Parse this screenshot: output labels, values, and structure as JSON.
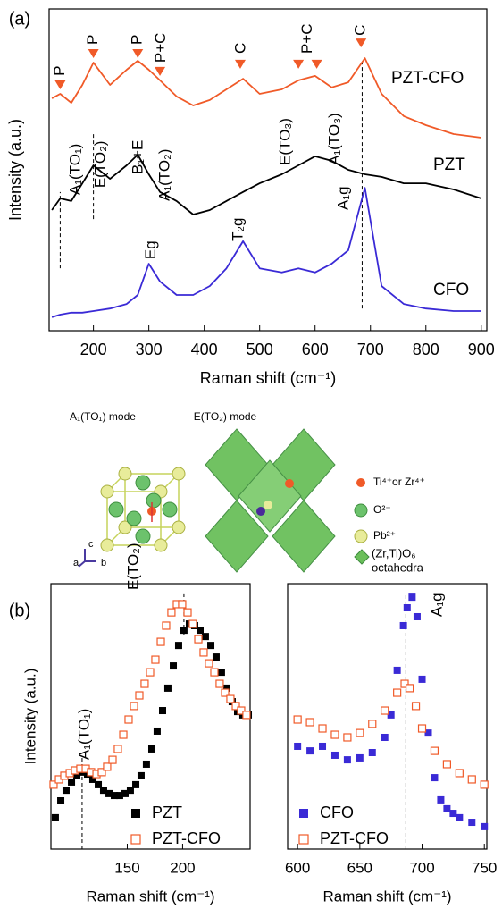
{
  "chart_data": [
    {
      "type": "line",
      "label": "(a)",
      "x_label": "Raman shift (cm⁻¹)",
      "y_label": "Intensity (a.u.)",
      "xlim": [
        120,
        910
      ],
      "xticks": [
        200,
        300,
        400,
        500,
        600,
        700,
        800,
        900
      ],
      "ylim": [
        0,
        100
      ],
      "x": [
        125,
        140,
        160,
        180,
        200,
        230,
        260,
        280,
        300,
        320,
        350,
        380,
        410,
        440,
        470,
        500,
        540,
        570,
        600,
        630,
        660,
        690,
        720,
        760,
        800,
        850,
        900
      ],
      "series": [
        {
          "name": "PZT-CFO",
          "color": "#f05a28",
          "values": [
            72.2,
            73.6,
            70.8,
            76.4,
            83.3,
            76.4,
            81.1,
            83.9,
            81.1,
            77.8,
            72.8,
            70,
            71.7,
            75,
            78.3,
            73.6,
            75,
            77.8,
            79.2,
            75.6,
            77.2,
            84.7,
            73.6,
            66.7,
            63.9,
            61.1,
            60
          ]
        },
        {
          "name": "PZT",
          "color": "#000000",
          "values": [
            37.5,
            41.1,
            40.3,
            45.8,
            51.4,
            47.2,
            51.4,
            54.7,
            48.6,
            43.1,
            40.3,
            36.1,
            37.5,
            40.3,
            43.1,
            45.8,
            48.6,
            51.4,
            54.2,
            52.8,
            50,
            48.6,
            47.8,
            45.8,
            45.8,
            43.9,
            41.1
          ]
        },
        {
          "name": "CFO",
          "color": "#3a2ad6",
          "values": [
            4.2,
            5,
            5.6,
            5.6,
            6.1,
            6.9,
            8.3,
            11.1,
            20.8,
            15.3,
            11.1,
            11.1,
            13.9,
            19.4,
            27.8,
            19.4,
            18.1,
            19.4,
            18.1,
            20.8,
            25,
            44.4,
            13.9,
            8.3,
            6.9,
            6.1,
            6.1
          ]
        }
      ],
      "annotations": [
        {
          "text": "A₁(TO₁)",
          "x": 168.4,
          "y": 42.2
        },
        {
          "text": "E(TO₂)",
          "x": 213.5,
          "y": 44.4
        },
        {
          "text": "B₁+E",
          "x": 281,
          "y": 48.6
        },
        {
          "text": "A₁(TO₂)",
          "x": 329.6,
          "y": 40.3
        },
        {
          "text": "E(TO₃)",
          "x": 547,
          "y": 51.4
        },
        {
          "text": "A₁(TO₃)",
          "x": 636,
          "y": 51.4
        },
        {
          "text": "A₁g",
          "x": 652,
          "y": 37.5
        },
        {
          "text": "Eg",
          "x": 305,
          "y": 22.2
        },
        {
          "text": "T₂g",
          "x": 462,
          "y": 27.8
        },
        {
          "text": "P",
          "x": 140,
          "y": 79.2
        },
        {
          "text": "P",
          "x": 200,
          "y": 88.9
        },
        {
          "text": "P",
          "x": 280,
          "y": 88.9
        },
        {
          "text": "P+C",
          "x": 322,
          "y": 83.3
        },
        {
          "text": "C",
          "x": 467,
          "y": 86.1
        },
        {
          "text": "P+C",
          "x": 587,
          "y": 86.1
        },
        {
          "text": "C",
          "x": 683,
          "y": 91.7
        }
      ],
      "peak_markers": {
        "color": "#f05a28",
        "points": [
          {
            "x": 140,
            "y": 76.4
          },
          {
            "x": 200,
            "y": 86.1
          },
          {
            "x": 280,
            "y": 86.1
          },
          {
            "x": 320,
            "y": 80.6
          },
          {
            "x": 465,
            "y": 82.8
          },
          {
            "x": 570,
            "y": 82.8
          },
          {
            "x": 603,
            "y": 82.8
          },
          {
            "x": 683,
            "y": 89.4
          }
        ]
      },
      "ref_lines": [
        {
          "x": 140,
          "from": 19.4,
          "to": 43.1
        },
        {
          "x": 200,
          "from": 34.7,
          "to": 61.1
        },
        {
          "x": 685,
          "from": 6.9,
          "to": 83.3
        }
      ]
    },
    {
      "type": "scatter",
      "label": "(b)",
      "x_label": "Raman shift (cm⁻¹)",
      "y_label": "Intensity (a.u.)",
      "xlim": [
        81,
        261
      ],
      "xticks": [
        150,
        200
      ],
      "ylim": [
        0,
        110
      ],
      "legend": "lower right",
      "series": [
        {
          "name": "PZT",
          "color": "#000000",
          "marker": "filled",
          "x": [
            85,
            89.9,
            94.7,
            99.6,
            104.4,
            109.2,
            114.1,
            118.9,
            123.8,
            128.6,
            133.5,
            138.3,
            143.1,
            148,
            152.8,
            157.7,
            162.5,
            167.3,
            172.2,
            177,
            181.9,
            186.7,
            191.6,
            196.4,
            201.2,
            206.1,
            210.9,
            215.8,
            220.6,
            225.5,
            230.3,
            235.1,
            240,
            244.8,
            249.7,
            254.5,
            259.4
          ],
          "values": [
            13,
            20,
            24.4,
            27.8,
            30.4,
            31.9,
            31.1,
            28.9,
            26.7,
            24.4,
            23,
            22.2,
            22.2,
            23,
            24.4,
            26.7,
            30.4,
            35.2,
            41.5,
            48.9,
            57.4,
            66.7,
            75.9,
            84.4,
            90.7,
            93.3,
            92.6,
            90.7,
            88.1,
            84.4,
            79.6,
            73.3,
            66.7,
            61.1,
            57,
            55.6,
            55.6
          ]
        },
        {
          "name": "PZT-CFO",
          "color": "#f05a28",
          "marker": "open",
          "x": [
            83.4,
            88.3,
            93.1,
            98,
            102.8,
            107.6,
            112.5,
            117.3,
            122.2,
            127,
            131.8,
            136.7,
            141.5,
            146.4,
            151.2,
            156.1,
            160.9,
            165.7,
            170.6,
            175.4,
            180.3,
            185.1,
            189.9,
            194.8,
            199.6,
            204.5,
            209.3,
            214.2,
            219,
            223.8,
            228.7,
            233.5,
            238.4,
            243.2,
            248.1,
            252.9,
            257.7
          ],
          "values": [
            26.7,
            28.9,
            30.4,
            31.5,
            32.6,
            33.3,
            33.3,
            31.9,
            31.1,
            31.9,
            34.1,
            37,
            41.5,
            47.4,
            53.7,
            59.3,
            63.7,
            68.5,
            73.3,
            78.5,
            85.9,
            92.6,
            98.1,
            101.5,
            101.5,
            98.1,
            93.3,
            87,
            81.5,
            77,
            73.3,
            68.5,
            64.8,
            62.2,
            59.3,
            57.4,
            55.6
          ]
        }
      ],
      "annotations": [
        {
          "text": "A₁(TO₁)",
          "x": 111.7,
          "y": 37
        },
        {
          "text": "E(TO₂)",
          "x": 156,
          "y": 107.4
        }
      ],
      "ref_lines": [
        {
          "x": 109.2,
          "from": 0,
          "to": 38.9
        },
        {
          "x": 201.2,
          "from": 88.9,
          "to": 105.6
        }
      ]
    },
    {
      "type": "scatter",
      "x_label": "Raman shift (cm⁻¹)",
      "xlim": [
        592,
        752
      ],
      "xticks": [
        600,
        650,
        700,
        750
      ],
      "ylim": [
        0,
        110
      ],
      "legend": "lower left",
      "series": [
        {
          "name": "CFO",
          "color": "#3a2ad6",
          "marker": "filled",
          "x": [
            600,
            610,
            620,
            630,
            640,
            650,
            660,
            670,
            675,
            680,
            685,
            688,
            692,
            696,
            700,
            705,
            710,
            715,
            720,
            725,
            730,
            740,
            750
          ],
          "values": [
            42.6,
            40.7,
            42.6,
            38.9,
            37,
            37.8,
            40,
            46.3,
            55.6,
            74.1,
            92.6,
            100,
            104.4,
            96.3,
            70.4,
            48.1,
            29.6,
            20.4,
            16.7,
            14.8,
            13,
            11.1,
            9.3
          ]
        },
        {
          "name": "PZT-CFO",
          "color": "#f05a28",
          "marker": "open",
          "x": [
            600,
            610,
            620,
            630,
            640,
            650,
            660,
            670,
            680,
            686,
            690,
            695,
            700,
            710,
            720,
            730,
            740,
            750
          ],
          "values": [
            53.7,
            52.6,
            50,
            47.4,
            46.3,
            48.1,
            51.9,
            57.4,
            64.8,
            68.5,
            66.7,
            59.3,
            50,
            40.7,
            35.2,
            31.5,
            28.9,
            26.7
          ]
        }
      ],
      "annotations": [
        {
          "text": "A₁g",
          "x": 712.5,
          "y": 96.3
        }
      ],
      "ref_lines": [
        {
          "x": 687,
          "from": 0,
          "to": 105.6
        }
      ]
    }
  ],
  "diagram": {
    "mode_labels": [
      "A₁(TO₁) mode",
      "E(TO₂) mode"
    ],
    "legend": [
      "Ti⁴⁺or Zr⁴⁺",
      "O²⁻",
      "Pb²⁺",
      "(Zr,Ti)O₆",
      "octahedra"
    ],
    "axes": [
      "a",
      "b",
      "c"
    ]
  }
}
